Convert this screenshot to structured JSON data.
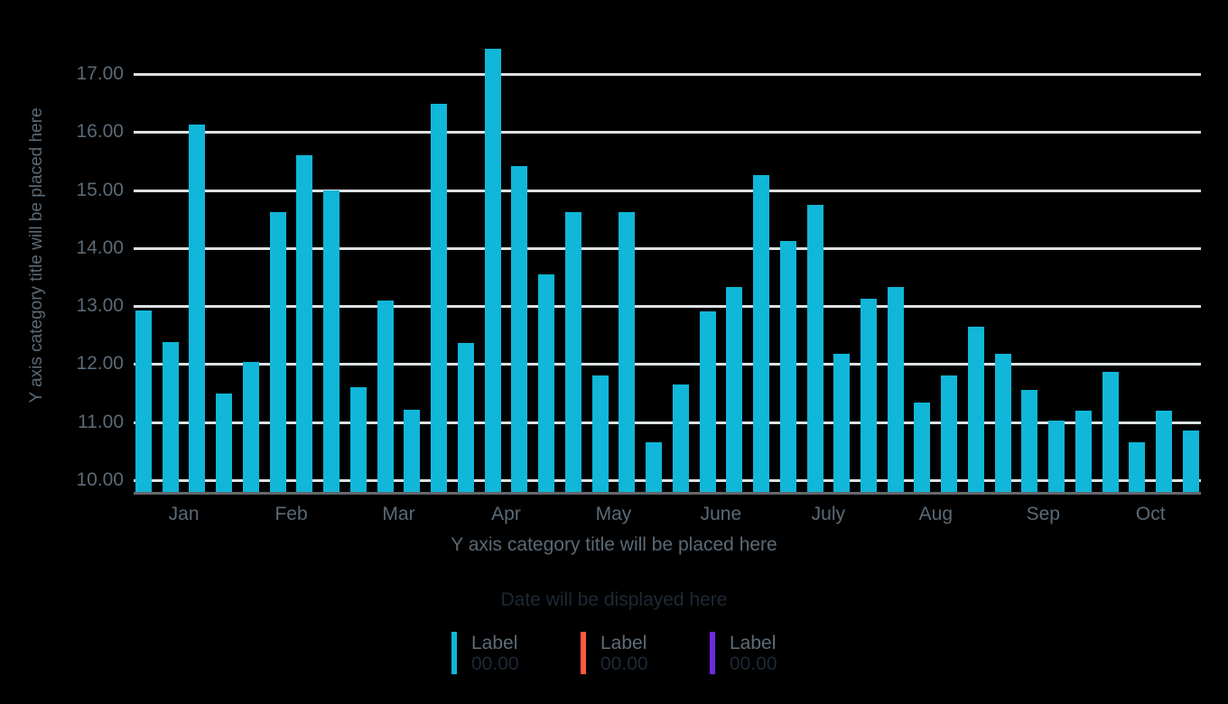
{
  "chart_data": {
    "type": "bar",
    "title": "",
    "xlabel": "Y axis category title will be placed here",
    "ylabel": "Y axis category title will be placed here",
    "categories": [
      "Jan",
      "Feb",
      "Mar",
      "Apr",
      "May",
      "June",
      "July",
      "Aug",
      "Sep",
      "Oct"
    ],
    "bars_per_category": 4,
    "series": [
      {
        "name": "Label",
        "color": "#10b7d9",
        "values_by_category": [
          [
            12.93,
            12.38,
            16.12,
            11.49
          ],
          [
            12.04,
            14.62,
            15.6,
            15.0
          ],
          [
            11.6,
            13.09,
            11.21,
            16.48
          ],
          [
            12.37,
            17.44,
            15.42,
            13.55
          ],
          [
            14.62,
            11.81,
            14.62,
            10.66
          ],
          [
            11.65,
            12.91,
            13.33,
            15.26
          ],
          [
            14.12,
            14.74,
            12.17,
            13.12
          ],
          [
            13.33,
            11.33,
            11.8,
            12.64
          ],
          [
            12.17,
            11.55,
            11.03,
            11.2
          ],
          [
            11.86,
            10.66,
            11.2,
            10.85
          ]
        ]
      }
    ],
    "ylim": [
      10,
      17.5
    ],
    "ytick_values": [
      17,
      16,
      15,
      14,
      13,
      12,
      11,
      10
    ],
    "ytick_labels": [
      "17.00",
      "16.00",
      "15.00",
      "14.00",
      "13.00",
      "12.00",
      "11.00",
      "10.00"
    ],
    "grid": true,
    "legend_position": "bottom"
  },
  "footer": {
    "date_text": "Date will be displayed here",
    "legend": [
      {
        "label": "Label",
        "value": "00.00",
        "color": "#10b7d9"
      },
      {
        "label": "Label",
        "value": "00.00",
        "color": "#fb5a40"
      },
      {
        "label": "Label",
        "value": "00.00",
        "color": "#6e2ae0"
      }
    ]
  },
  "colors": {
    "background": "#000000",
    "bar": "#10b7d9",
    "gridline": "#dde1e4",
    "axis_line": "#63686d",
    "axis_text": "#5b6a76",
    "muted_text": "#1d2936"
  }
}
